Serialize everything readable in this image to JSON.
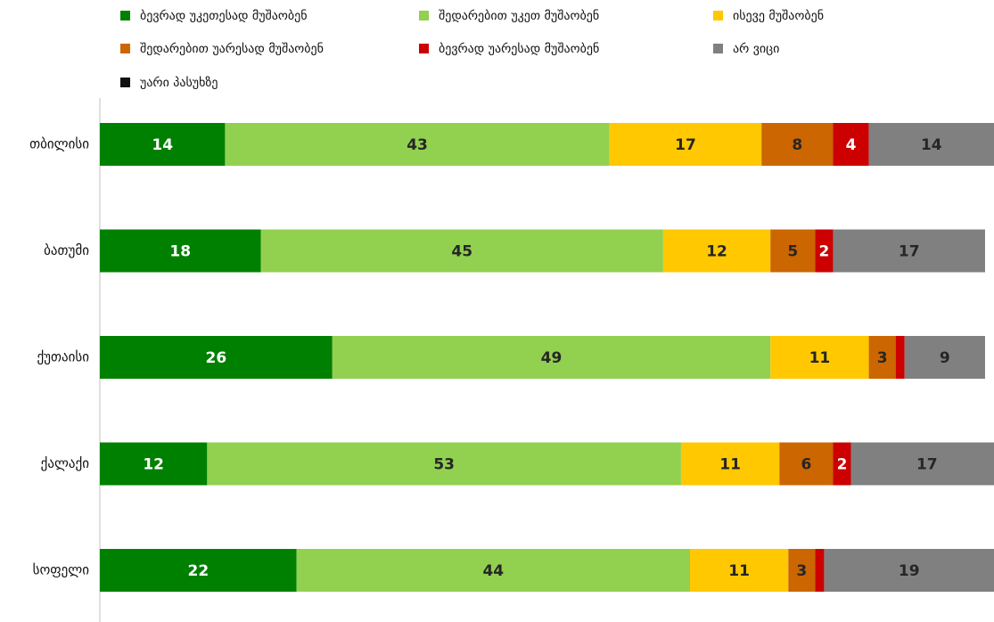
{
  "chart_data": {
    "type": "stacked_barh",
    "categories": [
      "თბილისი",
      "ბათუმი",
      "ქუთაისი",
      "ქალაქი",
      "სოფელი"
    ],
    "xlim": [
      0,
      100
    ],
    "series": [
      {
        "name": "ბევრად უკეთესად მუშაობენ",
        "color": "#008000",
        "label_color": "#ffffff",
        "values": [
          14,
          18,
          26,
          12,
          22
        ]
      },
      {
        "name": "შედარებით უკეთ მუშაობენ",
        "color": "#92d050",
        "label_color": "#262626",
        "values": [
          43,
          45,
          49,
          53,
          44
        ]
      },
      {
        "name": "ისევე მუშაობენ",
        "color": "#ffc800",
        "label_color": "#262626",
        "values": [
          17,
          12,
          11,
          11,
          11
        ]
      },
      {
        "name": "შედარებით უარესად მუშაობენ",
        "color": "#cc6600",
        "label_color": "#262626",
        "values": [
          8,
          5,
          3,
          6,
          3
        ]
      },
      {
        "name": "ბევრად უარესად მუშაობენ",
        "color": "#cc0000",
        "label_color": "#ffffff",
        "values": [
          4,
          2,
          1,
          2,
          1
        ],
        "value_labels": [
          "4",
          "2",
          null,
          "2",
          null
        ]
      },
      {
        "name": "არ ვიცი",
        "color": "#808080",
        "label_color": "#262626",
        "values": [
          14,
          17,
          9,
          17,
          19
        ]
      },
      {
        "name": "უარი პასუხზე",
        "color": "#111111",
        "label_color": "#ffffff",
        "values": [
          0,
          0,
          0,
          0,
          0
        ],
        "value_labels": [
          null,
          null,
          null,
          null,
          null
        ]
      }
    ]
  }
}
